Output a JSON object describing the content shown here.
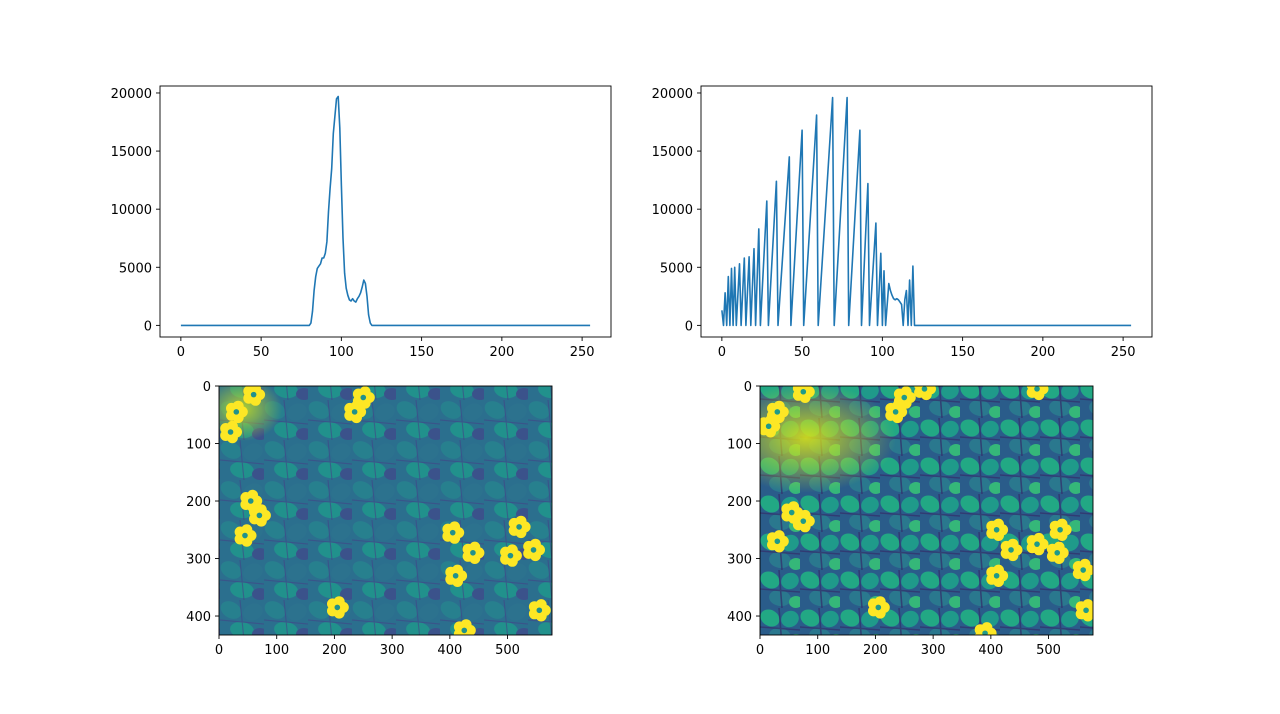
{
  "chart_data": [
    {
      "type": "line",
      "xlim": [
        -13,
        268
      ],
      "ylim": [
        -1000,
        20600
      ],
      "xticks": [
        0,
        50,
        100,
        150,
        200,
        250
      ],
      "yticks": [
        0,
        5000,
        10000,
        15000,
        20000
      ],
      "color": "#1f77b4",
      "grid": false,
      "series": [
        {
          "points": [
            [
              0,
              0
            ],
            [
              80,
              0
            ],
            [
              81,
              200
            ],
            [
              82,
              1200
            ],
            [
              83,
              3000
            ],
            [
              84,
              4200
            ],
            [
              85,
              4900
            ],
            [
              86,
              5100
            ],
            [
              87,
              5300
            ],
            [
              88,
              5800
            ],
            [
              89,
              5800
            ],
            [
              90,
              6200
            ],
            [
              91,
              7200
            ],
            [
              92,
              9800
            ],
            [
              93,
              11800
            ],
            [
              94,
              13500
            ],
            [
              95,
              16500
            ],
            [
              96,
              18000
            ],
            [
              97,
              19500
            ],
            [
              98,
              19700
            ],
            [
              99,
              17000
            ],
            [
              100,
              12000
            ],
            [
              101,
              7500
            ],
            [
              102,
              4500
            ],
            [
              103,
              3200
            ],
            [
              104,
              2600
            ],
            [
              105,
              2200
            ],
            [
              106,
              2100
            ],
            [
              107,
              2300
            ],
            [
              108,
              2100
            ],
            [
              109,
              2000
            ],
            [
              110,
              2300
            ],
            [
              111,
              2500
            ],
            [
              112,
              2800
            ],
            [
              113,
              3300
            ],
            [
              114,
              3900
            ],
            [
              115,
              3600
            ],
            [
              116,
              2500
            ],
            [
              117,
              900
            ],
            [
              118,
              200
            ],
            [
              119,
              0
            ],
            [
              120,
              0
            ],
            [
              255,
              0
            ]
          ]
        }
      ]
    },
    {
      "type": "line",
      "xlim": [
        -13,
        268
      ],
      "ylim": [
        -1000,
        20600
      ],
      "xticks": [
        0,
        50,
        100,
        150,
        200,
        250
      ],
      "yticks": [
        0,
        5000,
        10000,
        15000,
        20000
      ],
      "color": "#1f77b4",
      "grid": false,
      "series": [
        {
          "points": [
            [
              0,
              1300
            ],
            [
              1,
              0
            ],
            [
              2,
              2800
            ],
            [
              3,
              0
            ],
            [
              4,
              4200
            ],
            [
              5,
              0
            ],
            [
              6,
              4900
            ],
            [
              7,
              0
            ],
            [
              8,
              5000
            ],
            [
              9,
              0
            ],
            [
              11,
              5300
            ],
            [
              12,
              0
            ],
            [
              14,
              5800
            ],
            [
              15,
              0
            ],
            [
              17,
              5900
            ],
            [
              18,
              0
            ],
            [
              20,
              6600
            ],
            [
              21,
              0
            ],
            [
              23,
              8300
            ],
            [
              24,
              0
            ],
            [
              28,
              10700
            ],
            [
              29,
              0
            ],
            [
              34,
              12400
            ],
            [
              35,
              0
            ],
            [
              42,
              14500
            ],
            [
              43,
              0
            ],
            [
              50,
              16800
            ],
            [
              51,
              0
            ],
            [
              59,
              18100
            ],
            [
              60,
              0
            ],
            [
              69,
              19600
            ],
            [
              70,
              0
            ],
            [
              78,
              19600
            ],
            [
              79,
              0
            ],
            [
              86,
              16800
            ],
            [
              87,
              0
            ],
            [
              91,
              12200
            ],
            [
              92,
              0
            ],
            [
              96,
              8800
            ],
            [
              97,
              0
            ],
            [
              99,
              6200
            ],
            [
              100,
              0
            ],
            [
              101,
              4700
            ],
            [
              102,
              0
            ],
            [
              104,
              3600
            ],
            [
              105,
              3000
            ],
            [
              106,
              2600
            ],
            [
              107,
              2300
            ],
            [
              108,
              2200
            ],
            [
              109,
              2300
            ],
            [
              110,
              2200
            ],
            [
              111,
              2000
            ],
            [
              112,
              1800
            ],
            [
              113,
              0
            ],
            [
              114,
              2200
            ],
            [
              115,
              3000
            ],
            [
              116,
              0
            ],
            [
              117,
              3900
            ],
            [
              118,
              0
            ],
            [
              119,
              5100
            ],
            [
              120,
              0
            ],
            [
              255,
              0
            ]
          ]
        }
      ]
    },
    {
      "type": "heatmap",
      "colormap": "viridis",
      "xlim": [
        0,
        577
      ],
      "ylim": [
        433,
        0
      ],
      "xticks": [
        0,
        100,
        200,
        300,
        400,
        500
      ],
      "yticks": [
        0,
        100,
        200,
        300,
        400
      ],
      "colors": {
        "low": "#3b528b",
        "mid": "#21918c",
        "high": "#fde725"
      },
      "flowers": [
        [
          30,
          45
        ],
        [
          20,
          80
        ],
        [
          60,
          15
        ],
        [
          250,
          20
        ],
        [
          235,
          45
        ],
        [
          55,
          200
        ],
        [
          70,
          225
        ],
        [
          45,
          260
        ],
        [
          405,
          255
        ],
        [
          440,
          290
        ],
        [
          410,
          330
        ],
        [
          520,
          245
        ],
        [
          505,
          295
        ],
        [
          545,
          285
        ],
        [
          205,
          385
        ],
        [
          425,
          425
        ],
        [
          555,
          390
        ]
      ]
    },
    {
      "type": "heatmap",
      "colormap": "viridis",
      "xlim": [
        0,
        577
      ],
      "ylim": [
        433,
        0
      ],
      "xticks": [
        0,
        100,
        200,
        300,
        400,
        500
      ],
      "yticks": [
        0,
        100,
        200,
        300,
        400
      ],
      "colors": {
        "low": "#31306a",
        "mid": "#1f9a8a",
        "high": "#fde725"
      },
      "flowers": [
        [
          30,
          45
        ],
        [
          15,
          70
        ],
        [
          75,
          10
        ],
        [
          250,
          20
        ],
        [
          235,
          45
        ],
        [
          285,
          5
        ],
        [
          55,
          220
        ],
        [
          75,
          235
        ],
        [
          30,
          270
        ],
        [
          410,
          250
        ],
        [
          435,
          285
        ],
        [
          410,
          330
        ],
        [
          480,
          275
        ],
        [
          520,
          250
        ],
        [
          515,
          290
        ],
        [
          560,
          320
        ],
        [
          205,
          385
        ],
        [
          390,
          430
        ],
        [
          565,
          390
        ],
        [
          480,
          5
        ]
      ]
    }
  ]
}
